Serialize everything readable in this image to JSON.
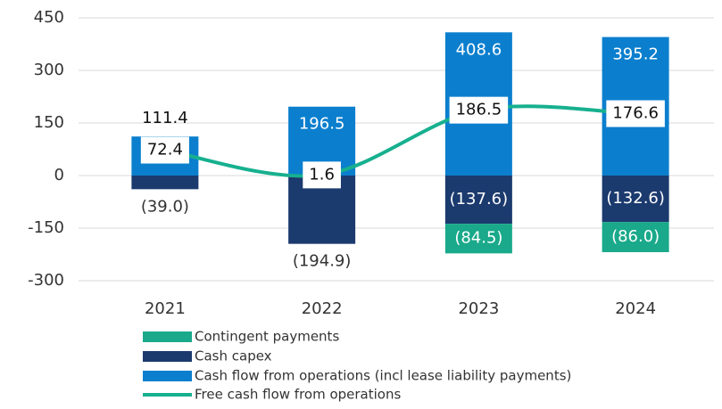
{
  "chart_data": {
    "type": "bar",
    "categories": [
      "2021",
      "2022",
      "2023",
      "2024"
    ],
    "ylim": [
      -300,
      450
    ],
    "yticks": [
      -300,
      -150,
      0,
      150,
      300,
      450
    ],
    "grid": true,
    "series": [
      {
        "name": "Contingent payments",
        "color": "#1aa98a",
        "values": [
          null,
          null,
          -84.5,
          -86.0
        ],
        "value_labels": [
          null,
          null,
          "(84.5)",
          "(86.0)"
        ]
      },
      {
        "name": "Cash capex",
        "color": "#1b3a6e",
        "values": [
          -39.0,
          -194.9,
          -137.6,
          -132.6
        ],
        "value_labels": [
          "(39.0)",
          "(194.9)",
          "(137.6)",
          "(132.6)"
        ]
      },
      {
        "name": "Cash flow from operations (incl  lease liability payments)",
        "color": "#0b7fce",
        "values": [
          111.4,
          196.5,
          408.6,
          395.2
        ]
      },
      {
        "name": "Free cash flow from operations",
        "type": "line",
        "color": "#17b08f",
        "values": [
          72.4,
          1.6,
          186.5,
          176.6
        ]
      }
    ]
  }
}
